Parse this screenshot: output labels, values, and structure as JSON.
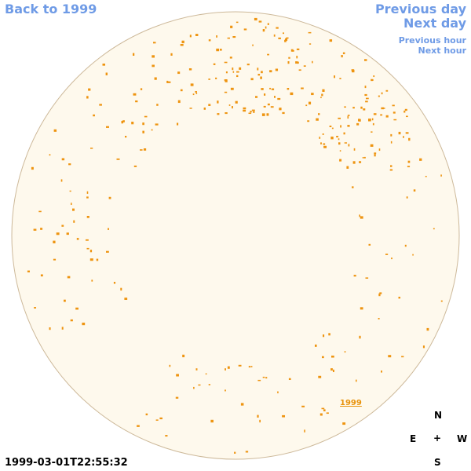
{
  "nav": {
    "back": "Back to 1999",
    "previous_day": "Previous day",
    "next_day": "Next day",
    "previous_hour": "Previous hour",
    "next_hour": "Next hour"
  },
  "region_label": "1999",
  "compass": {
    "n": "N",
    "e": "E",
    "center": "+",
    "w": "W",
    "s": "S"
  },
  "timestamp": "1999-03-01T22:55:32"
}
